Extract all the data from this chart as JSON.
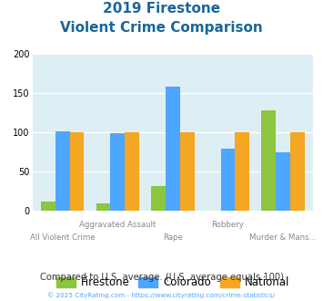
{
  "title_line1": "2019 Firestone",
  "title_line2": "Violent Crime Comparison",
  "categories": [
    "All Violent Crime",
    "Aggravated Assault",
    "Rape",
    "Robbery",
    "Murder & Mans..."
  ],
  "firestone": [
    12,
    9,
    32,
    0,
    128
  ],
  "colorado": [
    101,
    99,
    158,
    79,
    75
  ],
  "national": [
    100,
    100,
    100,
    100,
    100
  ],
  "color_firestone": "#8dc63f",
  "color_colorado": "#4da6ff",
  "color_national": "#f5a623",
  "ylim": [
    0,
    200
  ],
  "yticks": [
    0,
    50,
    100,
    150,
    200
  ],
  "bg_color": "#ddeef5",
  "title_color": "#1a6699",
  "footer_text": "Compared to U.S. average. (U.S. average equals 100)",
  "footer_color": "#333333",
  "credit_text": "© 2025 CityRating.com - https://www.cityrating.com/crime-statistics/",
  "credit_color": "#4da6ff",
  "xlabel_upper_pos": [
    1,
    3
  ],
  "xlabel_lower_pos": [
    0,
    2,
    4
  ],
  "bar_width": 0.26
}
